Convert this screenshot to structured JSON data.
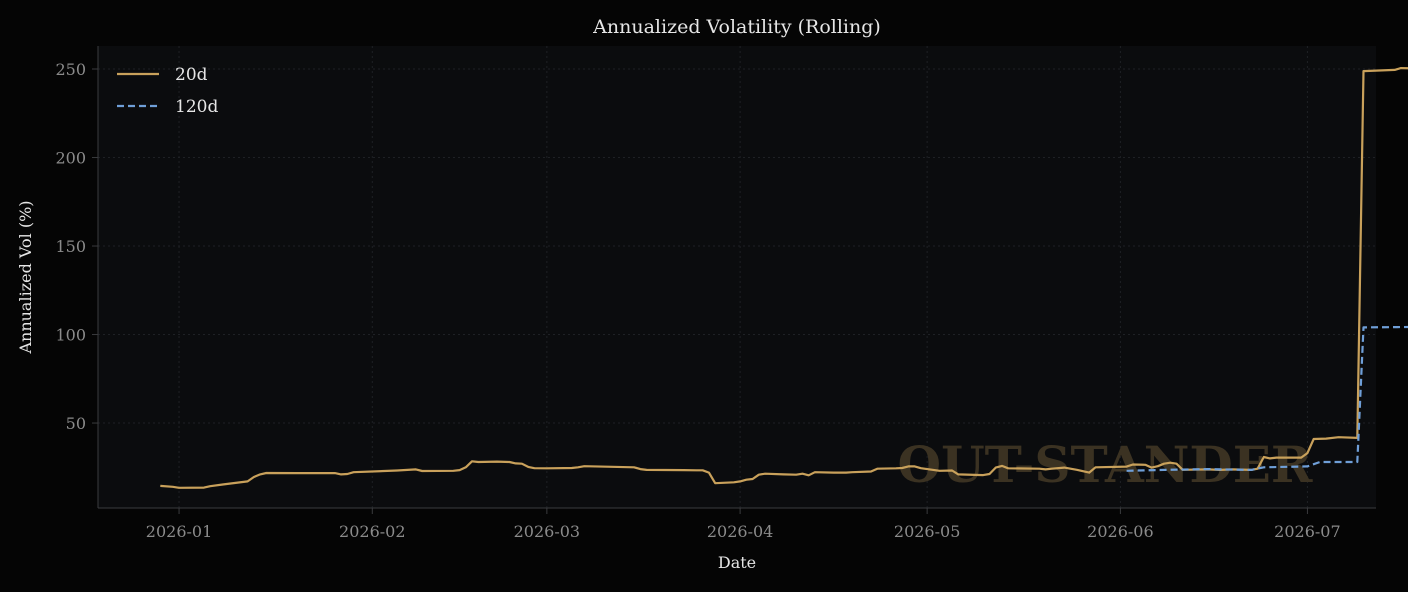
{
  "chart_data": {
    "type": "line",
    "title": "Annualized Volatility (Rolling)",
    "xlabel": "Date",
    "ylabel": "Annualized Vol (%)",
    "xlim": [
      "2025-12-19",
      "2026-07-12"
    ],
    "ylim": [
      2,
      263
    ],
    "x_ticks": [
      "2026-01-01",
      "2026-02-01",
      "2026-03-01",
      "2026-04-01",
      "2026-05-01",
      "2026-06-01",
      "2026-07-01"
    ],
    "x_tick_labels": [
      "2026-01",
      "2026-02",
      "2026-03",
      "2026-04",
      "2026-05",
      "2026-06",
      "2026-07"
    ],
    "y_ticks": [
      50,
      100,
      150,
      200,
      250
    ],
    "y_tick_labels": [
      "50",
      "100",
      "150",
      "200",
      "250"
    ],
    "grid": true,
    "legend_position": "top-left",
    "watermark": "OUT-STANDER",
    "colors": {
      "background": "#050505",
      "plot_bg": "#0b0c0e",
      "grid": "#1f2125",
      "spine": "#3a3b3e",
      "tick_text": "#8b8b8b",
      "label_text": "#e6e6e6",
      "series_20d": "#c9a15b",
      "series_120d": "#6f9fd8",
      "watermark": "#3b3222"
    },
    "series": [
      {
        "name": "20d",
        "style": "solid",
        "points": [
          [
            "2025-12-29",
            14.5
          ],
          [
            "2025-12-31",
            14.0
          ],
          [
            "2026-01-01",
            13.4
          ],
          [
            "2026-01-05",
            13.5
          ],
          [
            "2026-01-06",
            14.3
          ],
          [
            "2026-01-08",
            15.3
          ],
          [
            "2026-01-12",
            17.0
          ],
          [
            "2026-01-13",
            19.5
          ],
          [
            "2026-01-14",
            21.0
          ],
          [
            "2026-01-15",
            21.8
          ],
          [
            "2026-01-20",
            21.7
          ],
          [
            "2026-01-26",
            21.7
          ],
          [
            "2026-01-27",
            21.0
          ],
          [
            "2026-01-28",
            21.2
          ],
          [
            "2026-01-29",
            22.2
          ],
          [
            "2026-02-05",
            23.2
          ],
          [
            "2026-02-08",
            23.8
          ],
          [
            "2026-02-09",
            22.9
          ],
          [
            "2026-02-14",
            23.0
          ],
          [
            "2026-02-15",
            23.4
          ],
          [
            "2026-02-16",
            25.0
          ],
          [
            "2026-02-17",
            28.4
          ],
          [
            "2026-02-18",
            28.0
          ],
          [
            "2026-02-21",
            28.2
          ],
          [
            "2026-02-23",
            28.0
          ],
          [
            "2026-02-24",
            27.2
          ],
          [
            "2026-02-25",
            27.0
          ],
          [
            "2026-02-26",
            25.2
          ],
          [
            "2026-02-27",
            24.5
          ],
          [
            "2026-03-01",
            24.4
          ],
          [
            "2026-03-05",
            24.6
          ],
          [
            "2026-03-06",
            25.0
          ],
          [
            "2026-03-07",
            25.6
          ],
          [
            "2026-03-15",
            25.0
          ],
          [
            "2026-03-16",
            24.0
          ],
          [
            "2026-03-17",
            23.5
          ],
          [
            "2026-03-23",
            23.4
          ],
          [
            "2026-03-25",
            23.3
          ],
          [
            "2026-03-26",
            23.3
          ],
          [
            "2026-03-27",
            22.0
          ],
          [
            "2026-03-28",
            16.0
          ],
          [
            "2026-03-31",
            16.5
          ],
          [
            "2026-04-01",
            17.0
          ],
          [
            "2026-04-02",
            18.0
          ],
          [
            "2026-04-03",
            18.4
          ],
          [
            "2026-04-04",
            20.8
          ],
          [
            "2026-04-05",
            21.4
          ],
          [
            "2026-04-08",
            21.0
          ],
          [
            "2026-04-10",
            20.8
          ],
          [
            "2026-04-11",
            21.4
          ],
          [
            "2026-04-12",
            20.5
          ],
          [
            "2026-04-13",
            22.2
          ],
          [
            "2026-04-16",
            22.0
          ],
          [
            "2026-04-18",
            22.0
          ],
          [
            "2026-04-19",
            22.2
          ],
          [
            "2026-04-22",
            22.6
          ],
          [
            "2026-04-23",
            24.2
          ],
          [
            "2026-04-26",
            24.4
          ],
          [
            "2026-04-27",
            24.6
          ],
          [
            "2026-04-28",
            25.5
          ],
          [
            "2026-04-29",
            25.5
          ],
          [
            "2026-04-30",
            24.5
          ],
          [
            "2026-05-03",
            23.0
          ],
          [
            "2026-05-05",
            23.2
          ],
          [
            "2026-05-06",
            21.0
          ],
          [
            "2026-05-10",
            20.6
          ],
          [
            "2026-05-11",
            21.2
          ],
          [
            "2026-05-12",
            24.8
          ],
          [
            "2026-05-13",
            25.8
          ],
          [
            "2026-05-14",
            24.4
          ],
          [
            "2026-05-19",
            24.2
          ],
          [
            "2026-05-20",
            23.8
          ],
          [
            "2026-05-21",
            24.2
          ],
          [
            "2026-05-23",
            24.8
          ],
          [
            "2026-05-25",
            23.6
          ],
          [
            "2026-05-27",
            22.0
          ],
          [
            "2026-05-28",
            25.0
          ],
          [
            "2026-06-02",
            25.4
          ],
          [
            "2026-06-03",
            26.6
          ],
          [
            "2026-06-05",
            26.4
          ],
          [
            "2026-06-06",
            24.8
          ],
          [
            "2026-06-07",
            25.6
          ],
          [
            "2026-06-08",
            27.0
          ],
          [
            "2026-06-09",
            27.6
          ],
          [
            "2026-06-10",
            27.0
          ],
          [
            "2026-06-11",
            23.6
          ],
          [
            "2026-06-15",
            23.8
          ],
          [
            "2026-06-17",
            23.5
          ],
          [
            "2026-06-19",
            23.8
          ],
          [
            "2026-06-22",
            23.5
          ],
          [
            "2026-06-23",
            24.2
          ],
          [
            "2026-06-24",
            30.8
          ],
          [
            "2026-06-25",
            30.0
          ],
          [
            "2026-06-26",
            30.5
          ],
          [
            "2026-06-30",
            30.5
          ],
          [
            "2026-07-01",
            33.0
          ],
          [
            "2026-07-02",
            41.0
          ],
          [
            "2026-07-04",
            41.2
          ],
          [
            "2026-07-06",
            42.0
          ],
          [
            "2026-07-09",
            41.6
          ],
          [
            "2026-07-10",
            248.8
          ],
          [
            "2026-07-13",
            249.2
          ],
          [
            "2026-07-15",
            249.5
          ],
          [
            "2026-07-16",
            250.5
          ],
          [
            "2026-07-19",
            250.3
          ]
        ]
      },
      {
        "name": "120d",
        "style": "dashed",
        "points": [
          [
            "2026-06-02",
            23.0
          ],
          [
            "2026-06-08",
            23.5
          ],
          [
            "2026-06-15",
            24.0
          ],
          [
            "2026-06-22",
            23.5
          ],
          [
            "2026-06-24",
            25.0
          ],
          [
            "2026-07-01",
            25.5
          ],
          [
            "2026-07-03",
            28.0
          ],
          [
            "2026-07-09",
            28.0
          ],
          [
            "2026-07-10",
            104.0
          ],
          [
            "2026-07-19",
            104.3
          ]
        ]
      }
    ]
  }
}
